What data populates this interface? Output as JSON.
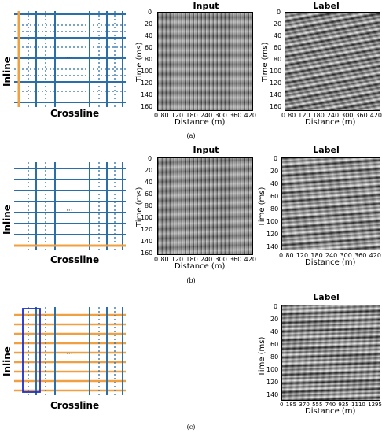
{
  "colors": {
    "blue": "#2a6fa8",
    "orange": "#f0a040",
    "selection": "#1b2fd0"
  },
  "panels": [
    {
      "id": "a",
      "caption": "(a)",
      "grid": {
        "xlabel": "Crossline",
        "ylabel": "Inline",
        "ellipsis": "···"
      },
      "input": {
        "title": "Input",
        "xlabel": "Distance (m)",
        "ylabel": "Time (ms)",
        "xticks": [
          "0",
          "80",
          "120",
          "180",
          "240",
          "300",
          "360",
          "420"
        ],
        "yticks": [
          "0",
          "20",
          "40",
          "60",
          "80",
          "100",
          "120",
          "140",
          "160"
        ]
      },
      "label": {
        "title": "Label",
        "xlabel": "Distance (m)",
        "ylabel": "Time (ms)",
        "xticks": [
          "0",
          "80",
          "120",
          "180",
          "240",
          "300",
          "360",
          "420"
        ],
        "yticks": [
          "0",
          "20",
          "40",
          "60",
          "80",
          "100",
          "120",
          "140",
          "160"
        ]
      }
    },
    {
      "id": "b",
      "caption": "(b)",
      "grid": {
        "xlabel": "Crossline",
        "ylabel": "Inline",
        "ellipsis": "···"
      },
      "input": {
        "title": "Input",
        "xlabel": "Distance (m)",
        "ylabel": "Time (ms)",
        "xticks": [
          "0",
          "80",
          "120",
          "180",
          "240",
          "300",
          "360",
          "420"
        ],
        "yticks": [
          "0",
          "20",
          "40",
          "60",
          "80",
          "100",
          "120",
          "140",
          "160"
        ]
      },
      "label": {
        "title": "Label",
        "xlabel": "Distance (m)",
        "ylabel": "Time (ms)",
        "xticks": [
          "0",
          "80",
          "120",
          "180",
          "240",
          "300",
          "360",
          "420"
        ],
        "yticks": [
          "0",
          "20",
          "40",
          "60",
          "80",
          "100",
          "120",
          "140"
        ]
      }
    },
    {
      "id": "c",
      "caption": "(c)",
      "grid": {
        "xlabel": "Crossline",
        "ylabel": "Inline",
        "ellipsis": "···"
      },
      "label": {
        "title": "Label",
        "xlabel": "Distance (m)",
        "ylabel": "Time (ms)",
        "xticks": [
          "0",
          "185",
          "370",
          "555",
          "740",
          "925",
          "1110",
          "1295"
        ],
        "yticks": [
          "0",
          "20",
          "40",
          "60",
          "80",
          "100",
          "120",
          "140"
        ]
      }
    }
  ]
}
